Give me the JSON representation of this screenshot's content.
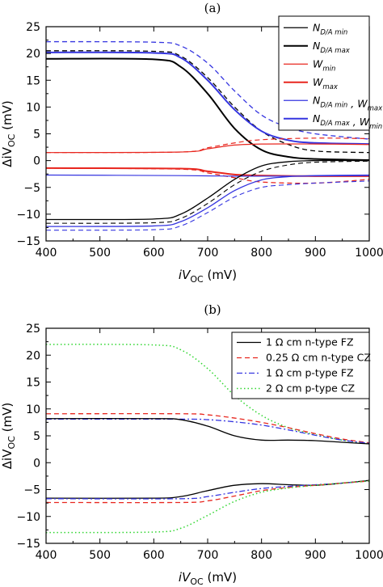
{
  "chart_data": [
    {
      "panel_title": "(a)",
      "type": "line",
      "xlabel": {
        "main": "iV",
        "sub": "OC",
        "unit": " (mV)"
      },
      "ylabel": {
        "main": "ΔiV",
        "sub": "OC",
        "unit": " (mV)"
      },
      "xlim": [
        400,
        1000
      ],
      "ylim": [
        -15,
        25
      ],
      "x_ticks": [
        "400",
        "500",
        "600",
        "700",
        "800",
        "900",
        "1000"
      ],
      "y_ticks": [
        "-15",
        "-10",
        "-5",
        "0",
        "5",
        "10",
        "15",
        "20",
        "25"
      ],
      "grid": false,
      "legend_position": "top-right",
      "legend": [
        {
          "main": "N",
          "sub": "D/A min",
          "tail": "",
          "sub2": "",
          "color": "#000000",
          "dash": "solid",
          "width": 1.2
        },
        {
          "main": "N",
          "sub": "D/A max",
          "tail": "",
          "sub2": "",
          "color": "#000000",
          "dash": "solid",
          "width": 2.0
        },
        {
          "main": "W",
          "sub": "min",
          "tail": "",
          "sub2": "",
          "color": "#e8271f",
          "dash": "solid",
          "width": 1.2
        },
        {
          "main": "W",
          "sub": "max",
          "tail": "",
          "sub2": "",
          "color": "#e8271f",
          "dash": "solid",
          "width": 2.0
        },
        {
          "main": "N",
          "sub": "D/A min",
          "tail": " , W",
          "sub2": "max",
          "color": "#3535e0",
          "dash": "solid",
          "width": 1.2
        },
        {
          "main": "N",
          "sub": "D/A max",
          "tail": " , W",
          "sub2": "min",
          "color": "#3535e0",
          "dash": "solid",
          "width": 2.0
        }
      ],
      "series": [
        {
          "color": "#000000",
          "dash": "solid",
          "width": 2.0,
          "points": [
            [
              400,
              19.0
            ],
            [
              600,
              18.9
            ],
            [
              650,
              17.5
            ],
            [
              700,
              12.5
            ],
            [
              750,
              6.0
            ],
            [
              800,
              2.0
            ],
            [
              850,
              0.7
            ],
            [
              900,
              0.3
            ],
            [
              1000,
              0.1
            ]
          ]
        },
        {
          "color": "#000000",
          "dash": "dash",
          "width": 1.3,
          "points": [
            [
              400,
              20.5
            ],
            [
              600,
              20.4
            ],
            [
              650,
              19.5
            ],
            [
              700,
              15.5
            ],
            [
              750,
              10.0
            ],
            [
              800,
              5.5
            ],
            [
              850,
              3.0
            ],
            [
              900,
              1.8
            ],
            [
              1000,
              1.5
            ]
          ]
        },
        {
          "color": "#3535e0",
          "dash": "solid",
          "width": 2.0,
          "points": [
            [
              400,
              20.2
            ],
            [
              600,
              20.1
            ],
            [
              650,
              19.2
            ],
            [
              700,
              15.0
            ],
            [
              750,
              9.5
            ],
            [
              800,
              5.5
            ],
            [
              850,
              3.8
            ],
            [
              900,
              3.3
            ],
            [
              1000,
              3.1
            ]
          ]
        },
        {
          "color": "#3535e0",
          "dash": "dash",
          "width": 1.3,
          "points": [
            [
              400,
              22.2
            ],
            [
              600,
              22.1
            ],
            [
              650,
              21.4
            ],
            [
              700,
              18.2
            ],
            [
              750,
              13.0
            ],
            [
              800,
              8.5
            ],
            [
              850,
              6.2
            ],
            [
              900,
              5.0
            ],
            [
              1000,
              4.0
            ]
          ]
        },
        {
          "color": "#e8271f",
          "dash": "solid",
          "width": 1.2,
          "points": [
            [
              400,
              1.5
            ],
            [
              650,
              1.6
            ],
            [
              700,
              2.2
            ],
            [
              750,
              2.9
            ],
            [
              800,
              3.1
            ],
            [
              900,
              3.1
            ],
            [
              1000,
              3.0
            ]
          ]
        },
        {
          "color": "#e8271f",
          "dash": "dash",
          "width": 1.2,
          "points": [
            [
              400,
              1.5
            ],
            [
              650,
              1.6
            ],
            [
              700,
              2.4
            ],
            [
              750,
              3.3
            ],
            [
              800,
              3.9
            ],
            [
              900,
              4.2
            ],
            [
              1000,
              4.1
            ]
          ]
        },
        {
          "color": "#e8271f",
          "dash": "solid",
          "width": 2.0,
          "points": [
            [
              400,
              -1.4
            ],
            [
              650,
              -1.5
            ],
            [
              700,
              -2.0
            ],
            [
              750,
              -2.6
            ],
            [
              800,
              -2.8
            ],
            [
              900,
              -2.9
            ],
            [
              1000,
              -2.9
            ]
          ]
        },
        {
          "color": "#e8271f",
          "dash": "dash",
          "width": 1.3,
          "points": [
            [
              400,
              -1.4
            ],
            [
              650,
              -1.6
            ],
            [
              700,
              -2.3
            ],
            [
              750,
              -3.2
            ],
            [
              800,
              -4.0
            ],
            [
              900,
              -4.2
            ],
            [
              1000,
              -3.5
            ]
          ]
        },
        {
          "color": "#3535e0",
          "dash": "solid",
          "width": 1.2,
          "points": [
            [
              400,
              -2.7
            ],
            [
              650,
              -2.8
            ],
            [
              750,
              -2.9
            ],
            [
              850,
              -2.9
            ],
            [
              1000,
              -2.8
            ]
          ]
        },
        {
          "color": "#000000",
          "dash": "solid",
          "width": 1.3,
          "points": [
            [
              400,
              -11.0
            ],
            [
              600,
              -10.9
            ],
            [
              650,
              -10.0
            ],
            [
              700,
              -7.0
            ],
            [
              750,
              -3.5
            ],
            [
              800,
              -1.0
            ],
            [
              850,
              -0.2
            ],
            [
              900,
              0.0
            ],
            [
              1000,
              0.0
            ]
          ]
        },
        {
          "color": "#000000",
          "dash": "dash",
          "width": 1.1,
          "points": [
            [
              400,
              -11.7
            ],
            [
              600,
              -11.6
            ],
            [
              650,
              -10.8
            ],
            [
              700,
              -8.0
            ],
            [
              750,
              -4.5
            ],
            [
              800,
              -2.0
            ],
            [
              850,
              -0.8
            ],
            [
              900,
              -0.3
            ],
            [
              1000,
              -0.1
            ]
          ]
        },
        {
          "color": "#3535e0",
          "dash": "solid",
          "width": 1.3,
          "points": [
            [
              400,
              -12.3
            ],
            [
              600,
              -12.2
            ],
            [
              650,
              -11.4
            ],
            [
              700,
              -8.8
            ],
            [
              750,
              -5.6
            ],
            [
              800,
              -3.6
            ],
            [
              850,
              -3.0
            ],
            [
              900,
              -2.8
            ],
            [
              1000,
              -2.7
            ]
          ]
        },
        {
          "color": "#3535e0",
          "dash": "dash",
          "width": 1.1,
          "points": [
            [
              400,
              -13.0
            ],
            [
              600,
              -12.9
            ],
            [
              650,
              -12.2
            ],
            [
              700,
              -9.7
            ],
            [
              750,
              -6.8
            ],
            [
              800,
              -5.0
            ],
            [
              850,
              -4.5
            ],
            [
              900,
              -4.2
            ],
            [
              1000,
              -3.8
            ]
          ]
        }
      ]
    },
    {
      "panel_title": "(b)",
      "type": "line",
      "xlabel": {
        "main": "iV",
        "sub": "OC",
        "unit": " (mV)"
      },
      "ylabel": {
        "main": "ΔiV",
        "sub": "OC",
        "unit": " (mV)"
      },
      "xlim": [
        400,
        1000
      ],
      "ylim": [
        -15,
        25
      ],
      "x_ticks": [
        "400",
        "500",
        "600",
        "700",
        "800",
        "900",
        "1000"
      ],
      "y_ticks": [
        "-15",
        "-10",
        "-5",
        "0",
        "5",
        "10",
        "15",
        "20",
        "25"
      ],
      "grid": false,
      "legend_position": "top-right",
      "legend": [
        {
          "main": "1 Ω cm n-type FZ",
          "sub": "",
          "tail": "",
          "sub2": "",
          "color": "#000000",
          "dash": "solid",
          "width": 1.3
        },
        {
          "main": "0.25 Ω cm n-type CZ",
          "sub": "",
          "tail": "",
          "sub2": "",
          "color": "#e8271f",
          "dash": "dash",
          "width": 1.3
        },
        {
          "main": "1 Ω cm p-type FZ",
          "sub": "",
          "tail": "",
          "sub2": "",
          "color": "#3535e0",
          "dash": "dashdot",
          "width": 1.3
        },
        {
          "main": "2 Ω cm p-type CZ",
          "sub": "",
          "tail": "",
          "sub2": "",
          "color": "#2fd62f",
          "dash": "dot",
          "width": 1.5
        }
      ],
      "series": [
        {
          "color": "#2fd62f",
          "dash": "dot",
          "width": 1.5,
          "points": [
            [
              400,
              22.0
            ],
            [
              600,
              21.9
            ],
            [
              650,
              21.0
            ],
            [
              700,
              17.5
            ],
            [
              750,
              12.5
            ],
            [
              800,
              8.8
            ],
            [
              850,
              6.5
            ],
            [
              900,
              5.2
            ],
            [
              950,
              4.2
            ],
            [
              1000,
              3.5
            ]
          ]
        },
        {
          "color": "#e8271f",
          "dash": "dash",
          "width": 1.3,
          "points": [
            [
              400,
              9.1
            ],
            [
              650,
              9.1
            ],
            [
              700,
              8.9
            ],
            [
              750,
              8.3
            ],
            [
              800,
              7.5
            ],
            [
              850,
              6.5
            ],
            [
              900,
              5.4
            ],
            [
              950,
              4.4
            ],
            [
              1000,
              3.7
            ]
          ]
        },
        {
          "color": "#3535e0",
          "dash": "dashdot",
          "width": 1.3,
          "points": [
            [
              400,
              8.1
            ],
            [
              650,
              8.1
            ],
            [
              700,
              8.0
            ],
            [
              750,
              7.6
            ],
            [
              800,
              7.0
            ],
            [
              850,
              6.1
            ],
            [
              900,
              5.1
            ],
            [
              950,
              4.2
            ],
            [
              1000,
              3.6
            ]
          ]
        },
        {
          "color": "#000000",
          "dash": "solid",
          "width": 1.3,
          "points": [
            [
              400,
              8.2
            ],
            [
              600,
              8.2
            ],
            [
              650,
              8.0
            ],
            [
              700,
              6.8
            ],
            [
              750,
              5.0
            ],
            [
              800,
              4.2
            ],
            [
              850,
              4.2
            ],
            [
              900,
              4.1
            ],
            [
              950,
              3.8
            ],
            [
              1000,
              3.5
            ]
          ]
        },
        {
          "color": "#000000",
          "dash": "solid",
          "width": 1.3,
          "points": [
            [
              400,
              -6.6
            ],
            [
              600,
              -6.6
            ],
            [
              650,
              -6.3
            ],
            [
              700,
              -5.2
            ],
            [
              750,
              -4.2
            ],
            [
              800,
              -3.9
            ],
            [
              850,
              -4.1
            ],
            [
              900,
              -4.2
            ],
            [
              950,
              -3.8
            ],
            [
              1000,
              -3.3
            ]
          ]
        },
        {
          "color": "#3535e0",
          "dash": "dashdot",
          "width": 1.3,
          "points": [
            [
              400,
              -6.7
            ],
            [
              650,
              -6.7
            ],
            [
              700,
              -6.3
            ],
            [
              750,
              -5.5
            ],
            [
              800,
              -4.8
            ],
            [
              850,
              -4.4
            ],
            [
              900,
              -4.1
            ],
            [
              950,
              -3.8
            ],
            [
              1000,
              -3.4
            ]
          ]
        },
        {
          "color": "#e8271f",
          "dash": "dash",
          "width": 1.3,
          "points": [
            [
              400,
              -7.4
            ],
            [
              650,
              -7.4
            ],
            [
              700,
              -7.1
            ],
            [
              750,
              -6.2
            ],
            [
              800,
              -5.2
            ],
            [
              850,
              -4.6
            ],
            [
              900,
              -4.2
            ],
            [
              950,
              -3.8
            ],
            [
              1000,
              -3.4
            ]
          ]
        },
        {
          "color": "#2fd62f",
          "dash": "dot",
          "width": 1.5,
          "points": [
            [
              400,
              -13.0
            ],
            [
              600,
              -12.9
            ],
            [
              650,
              -12.2
            ],
            [
              700,
              -9.8
            ],
            [
              750,
              -7.2
            ],
            [
              800,
              -5.5
            ],
            [
              850,
              -4.7
            ],
            [
              900,
              -4.2
            ],
            [
              950,
              -3.8
            ],
            [
              1000,
              -3.4
            ]
          ]
        }
      ]
    }
  ]
}
